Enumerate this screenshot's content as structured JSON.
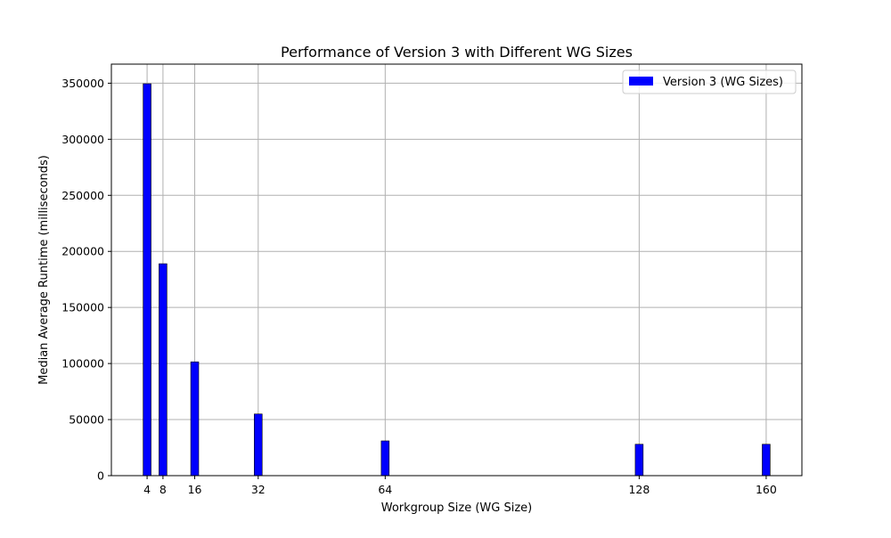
{
  "chart_data": {
    "type": "bar",
    "title": "Performance of Version 3 with Different WG Sizes",
    "xlabel": "Workgroup Size (WG Size)",
    "ylabel": "Median Average Runtime (milliseconds)",
    "x_ticks": [
      4,
      8,
      16,
      32,
      64,
      128,
      160
    ],
    "y_ticks": [
      0,
      50000,
      100000,
      150000,
      200000,
      250000,
      300000,
      350000
    ],
    "xlim": [
      -5,
      169
    ],
    "ylim": [
      0,
      367000
    ],
    "grid": true,
    "legend_position": "top-right",
    "series": [
      {
        "name": "Version 3 (WG Sizes)",
        "color": "#0000ff",
        "x": [
          4,
          8,
          16,
          32,
          64,
          128,
          160
        ],
        "values": [
          349500,
          189000,
          101500,
          55000,
          31000,
          28000,
          28000
        ]
      }
    ]
  }
}
